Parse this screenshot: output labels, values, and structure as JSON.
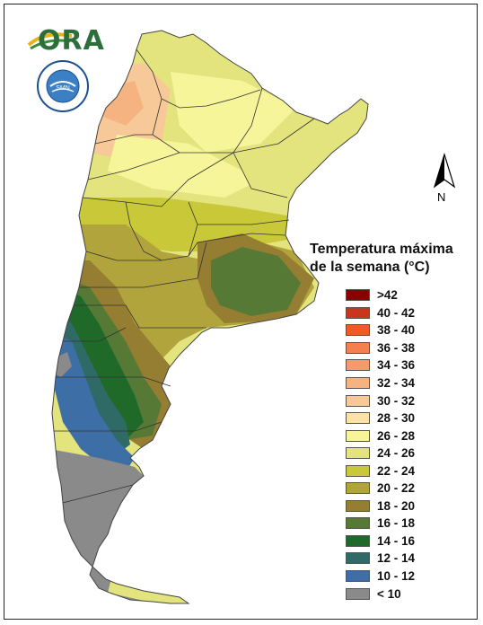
{
  "logo": {
    "text": "ORA"
  },
  "seal": {
    "text": "SERVICIO METEOROLÓGICO NACIONAL · ARGENTINA"
  },
  "north_arrow": {
    "label": "N"
  },
  "legend": {
    "title_line1": "Temperatura máxima",
    "title_line2": "de la semana (°C)",
    "items": [
      {
        "label": ">42",
        "color": "#8b0000"
      },
      {
        "label": "40 - 42",
        "color": "#c8361d"
      },
      {
        "label": "38 - 40",
        "color": "#f05a28"
      },
      {
        "label": "36 - 38",
        "color": "#f47f4f"
      },
      {
        "label": "34 - 36",
        "color": "#f59a6e"
      },
      {
        "label": "32 - 34",
        "color": "#f6b382"
      },
      {
        "label": "30 - 32",
        "color": "#f8c998"
      },
      {
        "label": "28 - 30",
        "color": "#fbe2a6"
      },
      {
        "label": "26 - 28",
        "color": "#f7f59a"
      },
      {
        "label": "24 - 26",
        "color": "#e3e47e"
      },
      {
        "label": "22 - 24",
        "color": "#c9c838"
      },
      {
        "label": "20 - 22",
        "color": "#b2a43c"
      },
      {
        "label": "18 - 20",
        "color": "#957e32"
      },
      {
        "label": "16 - 18",
        "color": "#567a36"
      },
      {
        "label": "14 - 16",
        "color": "#1f6a28"
      },
      {
        "label": "12 - 14",
        "color": "#2f6a66"
      },
      {
        "label": "10 - 12",
        "color": "#3d6fa6"
      },
      {
        "label": "< 10",
        "color": "#8a8a8a"
      }
    ]
  }
}
